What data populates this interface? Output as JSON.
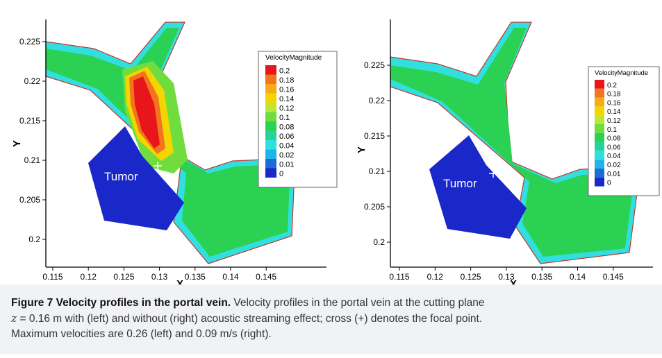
{
  "figure": {
    "panels": [
      {
        "id": "left",
        "annotation": "Tumor",
        "xlabel": "X",
        "ylabel": "Y",
        "xticks": [
          "0.115",
          "0.12",
          "0.125",
          "0.13",
          "0.135",
          "0.14",
          "0.145"
        ],
        "yticks": [
          "0.2",
          "0.205",
          "0.21",
          "0.215",
          "0.22",
          "0.225"
        ],
        "legend": {
          "title": "VelocityMagnitude",
          "labels": [
            "0.2",
            "0.18",
            "0.16",
            "0.14",
            "0.12",
            "0.1",
            "0.08",
            "0.06",
            "0.04",
            "0.02",
            "0.01",
            "0"
          ]
        }
      },
      {
        "id": "right",
        "annotation": "Tumor",
        "xlabel": "X",
        "ylabel": "Y",
        "xticks": [
          "0.115",
          "0.12",
          "0.125",
          "0.13",
          "0.135",
          "0.14",
          "0.145"
        ],
        "yticks": [
          "0.2",
          "0.205",
          "0.21",
          "0.215",
          "0.22",
          "0.225"
        ],
        "legend": {
          "title": "VelocityMagnitude",
          "labels": [
            "0.2",
            "0.18",
            "0.16",
            "0.14",
            "0.12",
            "0.1",
            "0.08",
            "0.06",
            "0.04",
            "0.02",
            "0.01",
            "0"
          ]
        }
      }
    ],
    "legend_colors": [
      "#e8151a",
      "#f2741e",
      "#f7ab18",
      "#f5d500",
      "#bfe535",
      "#70dd3f",
      "#2bd152",
      "#27d39b",
      "#31dfe1",
      "#1fb4ea",
      "#1d6cd6",
      "#1a27c9"
    ]
  },
  "caption": {
    "title": "Figure 7 Velocity profiles in the portal vein.",
    "line1": "Velocity profiles in the portal vein at the cutting plane",
    "z_var": "z",
    "z_eq": " = 0.16 m with (left) and without (right) acoustic streaming effect; cross (+) denotes the focal point.",
    "line3": "Maximum velocities are 0.26 (left) and 0.09 m/s (right)."
  }
}
